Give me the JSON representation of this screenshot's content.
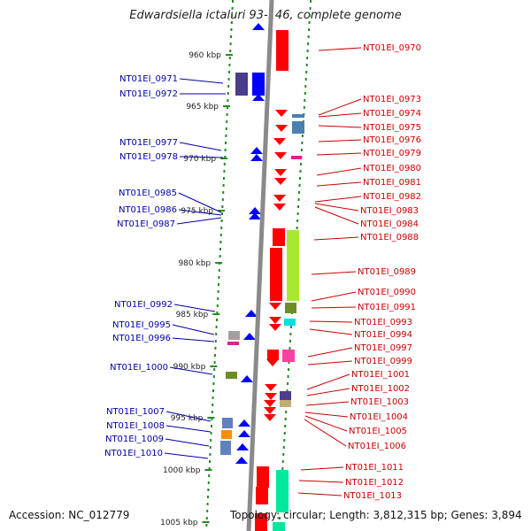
{
  "title": "Edwardsiella ictaluri 93-146, complete genome",
  "footer": {
    "accession": "Accession: NC_012779",
    "topology": "Topology: circular; Length: 3,812,315 bp; Genes: 3,894"
  },
  "scale_ticks": [
    "960 kbp",
    "965 kbp",
    "970 kbp",
    "975 kbp",
    "980 kbp",
    "985 kbp",
    "990 kbp",
    "995 kbp",
    "1000 kbp",
    "1005 kbp"
  ],
  "genes_left": [
    "NT01EI_0971",
    "NT01EI_0972",
    "NT01EI_0977",
    "NT01EI_0978",
    "NT01EI_0985",
    "NT01EI_0986",
    "NT01EI_0987",
    "NT01EI_0992",
    "NT01EI_0995",
    "NT01EI_0996",
    "NT01EI_1000",
    "NT01EI_1007",
    "NT01EI_1008",
    "NT01EI_1009",
    "NT01EI_1010"
  ],
  "genes_right": [
    "NT01EI_0970",
    "NT01EI_0973",
    "NT01EI_0974",
    "NT01EI_0975",
    "NT01EI_0976",
    "NT01EI_0979",
    "NT01EI_0980",
    "NT01EI_0981",
    "NT01EI_0982",
    "NT01EI_0983",
    "NT01EI_0984",
    "NT01EI_0988",
    "NT01EI_0989",
    "NT01EI_0990",
    "NT01EI_0991",
    "NT01EI_0993",
    "NT01EI_0994",
    "NT01EI_0997",
    "NT01EI_0999",
    "NT01EI_1001",
    "NT01EI_1002",
    "NT01EI_1003",
    "NT01EI_1004",
    "NT01EI_1005",
    "NT01EI_1006",
    "NT01EI_1011",
    "NT01EI_1012",
    "NT01EI_1013"
  ],
  "colors": {
    "reverse_strand": "#ff0000",
    "forward_strand": "#0000ff",
    "left_label": "#0000aa",
    "right_label": "#cc0000",
    "backbone": "#8a8a8a",
    "tick": "#228b22"
  }
}
